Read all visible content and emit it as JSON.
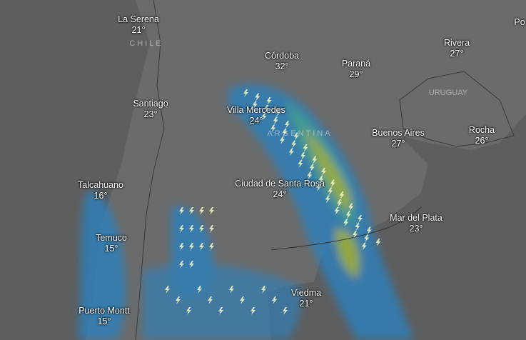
{
  "map": {
    "layer": "precipitation-thunderstorms",
    "colors": {
      "sea": "#5e5e5e",
      "land": "#6b6b6b",
      "rain_light": "#2f7fb8",
      "rain_mid": "#3aa39a",
      "rain_heavy": "#9bb53a"
    },
    "countries": [
      {
        "name": "CHILE"
      },
      {
        "name": "ARGENTINA"
      },
      {
        "name": "URUGUAY"
      }
    ],
    "cities": [
      {
        "name": "La Serena",
        "temp": "21°"
      },
      {
        "name": "Córdoba",
        "temp": "32°"
      },
      {
        "name": "Paraná",
        "temp": "29°"
      },
      {
        "name": "Rivera",
        "temp": "27°"
      },
      {
        "name": "Po",
        "temp": ""
      },
      {
        "name": "Santiago",
        "temp": "23°"
      },
      {
        "name": "Villa Mercedes",
        "temp": "24°"
      },
      {
        "name": "Buenos Aires",
        "temp": "27°"
      },
      {
        "name": "Rocha",
        "temp": "26°"
      },
      {
        "name": "Talcahuano",
        "temp": "16°"
      },
      {
        "name": "Ciudad de Santa Rosa",
        "temp": "24°"
      },
      {
        "name": "Mar del Plata",
        "temp": "23°"
      },
      {
        "name": "Temuco",
        "temp": "15°"
      },
      {
        "name": "Viedma",
        "temp": "21°"
      },
      {
        "name": "Puerto Montt",
        "temp": "15°"
      }
    ]
  }
}
